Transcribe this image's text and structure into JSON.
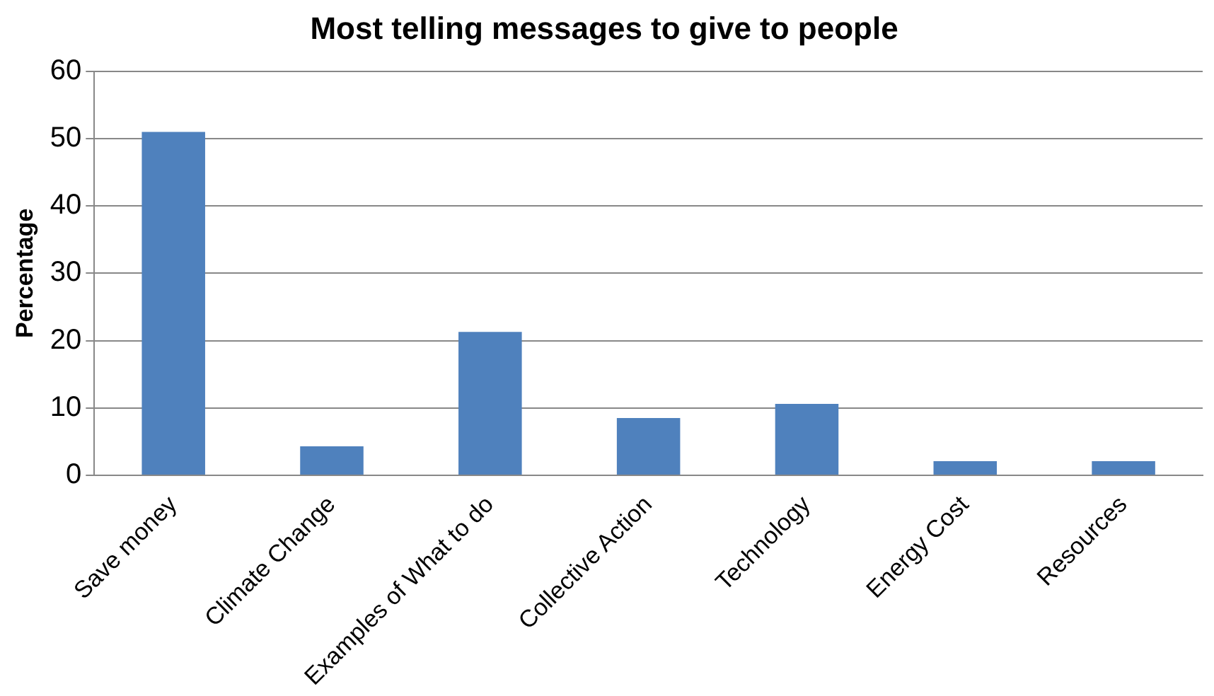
{
  "chart_data": {
    "type": "bar",
    "title": "Most telling messages to give to people",
    "ylabel": "Percentage",
    "categories": [
      "Save money",
      "Climate Change",
      "Examples of What to do",
      "Collective Action",
      "Technology",
      "Energy Cost",
      "Resources"
    ],
    "values": [
      51,
      4.3,
      21.3,
      8.5,
      10.6,
      2.1,
      2.1
    ],
    "color": "#4f81bd",
    "ylim": [
      0,
      60
    ],
    "yticks": [
      0,
      10,
      20,
      30,
      40,
      50,
      60
    ],
    "grid": "y"
  }
}
